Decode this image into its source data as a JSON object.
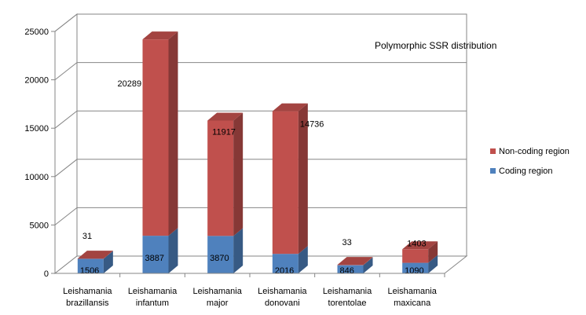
{
  "chart_data": {
    "type": "bar",
    "stacked": true,
    "three_d": true,
    "title": "Polymorphic SSR distribution",
    "categories": [
      [
        "Leishamania",
        "brazillansis"
      ],
      [
        "Leishamania",
        "infantum"
      ],
      [
        "Leishamania",
        "major"
      ],
      [
        "Leishamania",
        "donovani"
      ],
      [
        "Leishamania",
        "torentolae"
      ],
      [
        "Leishamania",
        "maxicana"
      ]
    ],
    "series": [
      {
        "name": "Coding region",
        "color": "#4f81bd",
        "values": [
          1506,
          3887,
          3870,
          2016,
          846,
          1090
        ]
      },
      {
        "name": "Non-coding region",
        "color": "#c0504d",
        "values": [
          31,
          20289,
          11917,
          14736,
          33,
          1403
        ]
      }
    ],
    "ylim": [
      0,
      25000
    ],
    "yticks": [
      0,
      5000,
      10000,
      15000,
      20000,
      25000
    ],
    "grid": true,
    "legend_position": "right"
  }
}
